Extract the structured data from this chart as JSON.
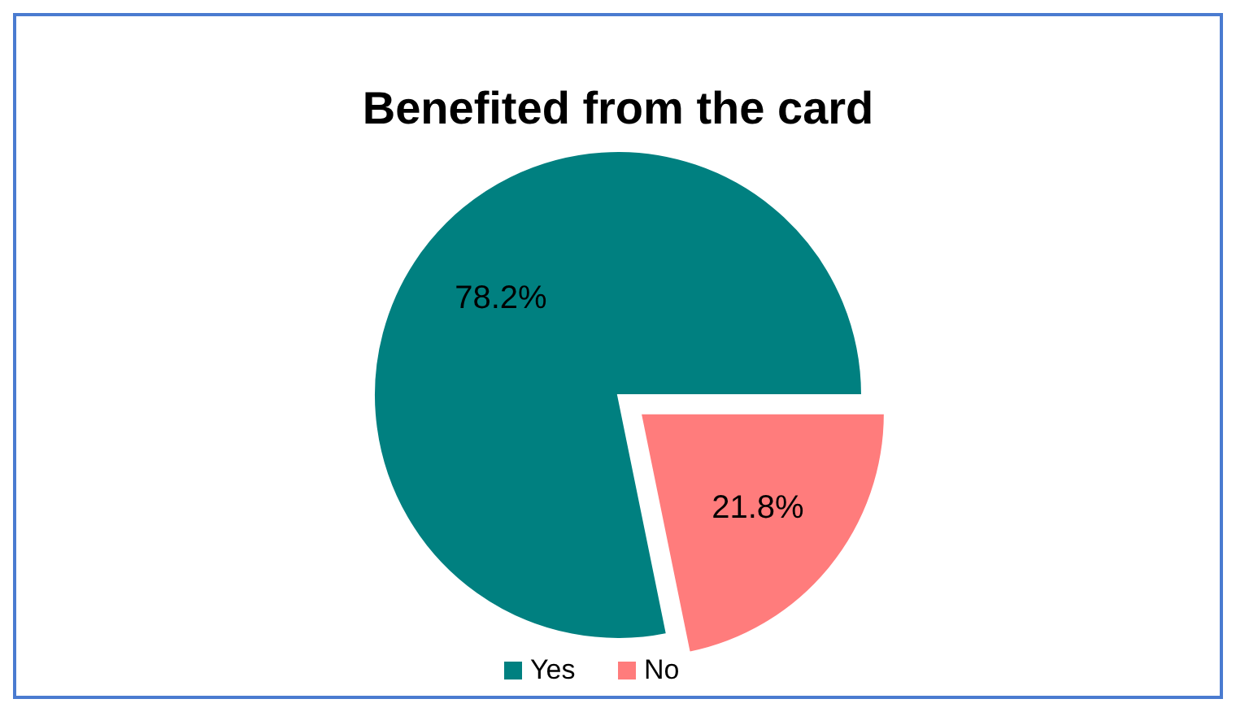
{
  "chart_data": {
    "type": "pie",
    "title": "Benefited from the card",
    "categories": [
      "Yes",
      "No"
    ],
    "values": [
      78.2,
      21.8
    ],
    "colors": [
      "#008080",
      "#ff7c7c"
    ],
    "value_labels": [
      "78.2%",
      "21.8%"
    ],
    "legend": "bottom"
  }
}
